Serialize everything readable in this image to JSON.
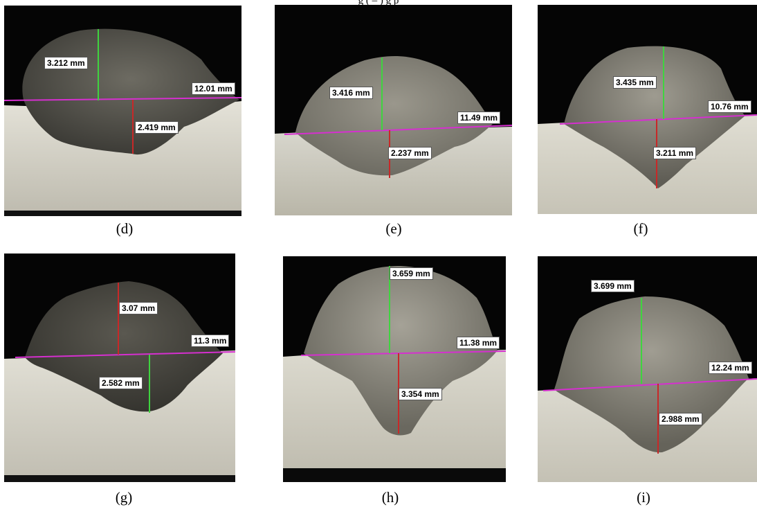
{
  "heading": "g   ( – )         g p",
  "colors": {
    "magenta_line": "#d62fd0",
    "green_line": "#3fd43f",
    "red_line": "#c82828",
    "background": "#050505"
  },
  "panels": [
    {
      "caption": "(d)",
      "height_label": "3.212 mm",
      "width_label": "12.01 mm",
      "depth_label": "2.419 mm"
    },
    {
      "caption": "(e)",
      "height_label": "3.416 mm",
      "width_label": "11.49 mm",
      "depth_label": "2.237 mm"
    },
    {
      "caption": "(f)",
      "height_label": "3.435 mm",
      "width_label": "10.76 mm",
      "depth_label": "3.211 mm"
    },
    {
      "caption": "(g)",
      "height_label": "3.07 mm",
      "width_label": "11.3 mm",
      "depth_label": "2.582 mm"
    },
    {
      "caption": "(h)",
      "height_label": "3.659 mm",
      "width_label": "11.38 mm",
      "depth_label": "3.354 mm"
    },
    {
      "caption": "(i)",
      "height_label": "3.699 mm",
      "width_label": "12.24 mm",
      "depth_label": "2.988 mm"
    }
  ]
}
